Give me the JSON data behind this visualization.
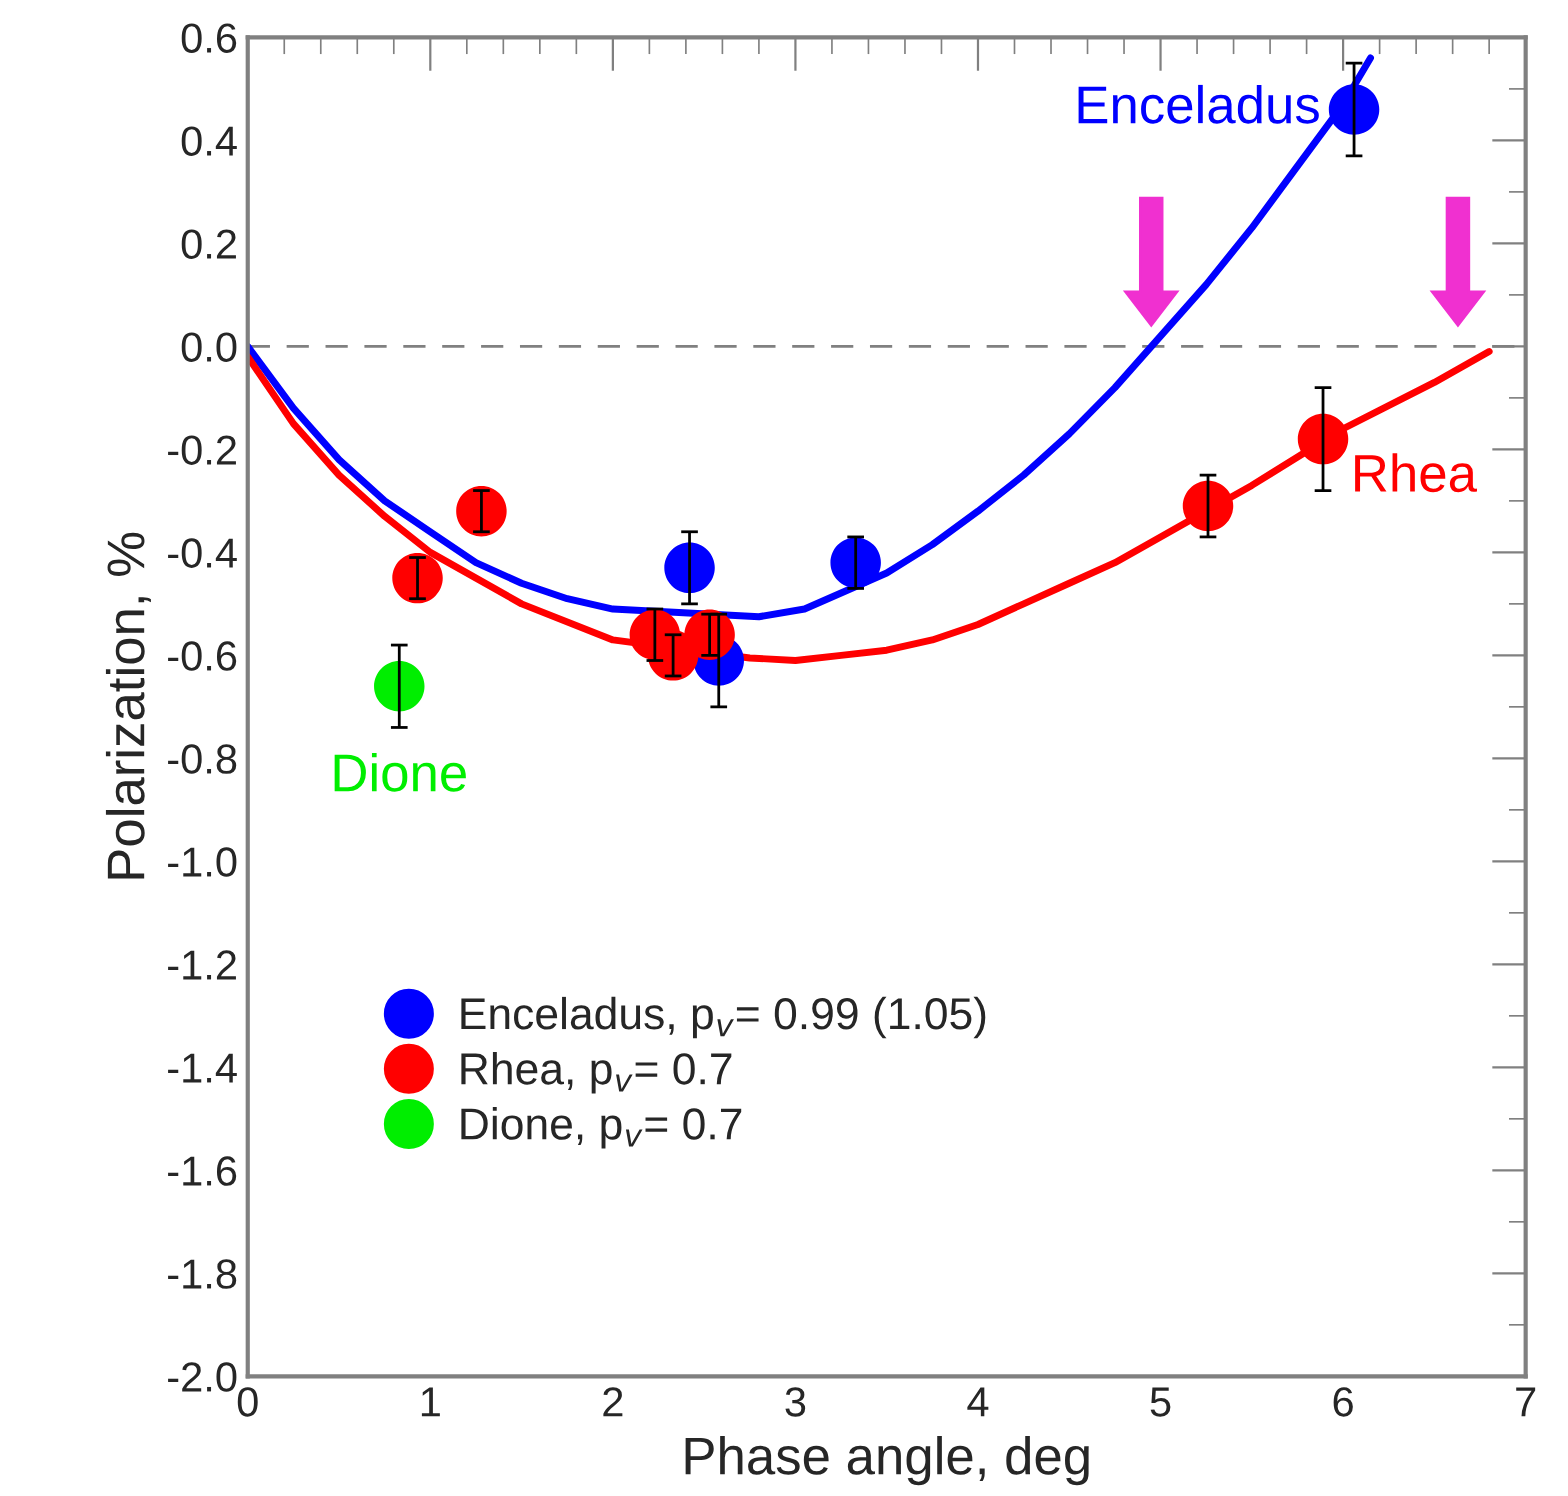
{
  "chart_data": {
    "type": "scatter",
    "xlabel": "Phase angle, deg",
    "ylabel": "Polarization, %",
    "xlim": [
      0,
      7
    ],
    "ylim": [
      -2.0,
      0.6
    ],
    "xticks": [
      0,
      1,
      2,
      3,
      4,
      5,
      6,
      7
    ],
    "yticks": [
      {
        "value": -2.0,
        "label": "-2.0"
      },
      {
        "value": -1.8,
        "label": "-1.8"
      },
      {
        "value": -1.6,
        "label": "-1.6"
      },
      {
        "value": -1.4,
        "label": "-1.4"
      },
      {
        "value": -1.2,
        "label": "-1.2"
      },
      {
        "value": -1.0,
        "label": "-1.0"
      },
      {
        "value": -0.8,
        "label": "-0.8"
      },
      {
        "value": -0.6,
        "label": "-0.6"
      },
      {
        "value": -0.4,
        "label": "-0.4"
      },
      {
        "value": -0.2,
        "label": "-0.2"
      },
      {
        "value": 0.0,
        "label": "0.0"
      },
      {
        "value": 0.2,
        "label": "0.2"
      },
      {
        "value": 0.4,
        "label": "0.4"
      },
      {
        "value": 0.6,
        "label": "0.6"
      }
    ],
    "grid": false,
    "legend": "bottom left",
    "marker": "circle",
    "ref_lines": [
      {
        "axis": "y",
        "value": 0,
        "color": "#808080",
        "line_style": "dashed"
      }
    ],
    "series": [
      {
        "type": "line",
        "marker": "none",
        "color": "#0000ff",
        "x": [
          0,
          0.25,
          0.5,
          0.75,
          1,
          1.25,
          1.5,
          1.75,
          2,
          2.8,
          3.05,
          3.5,
          3.75,
          4,
          4.25,
          4.5,
          4.75,
          5,
          5.25,
          5.5,
          5.75,
          6,
          6.15
        ],
        "values": [
          0,
          -0.12,
          -0.22,
          -0.3,
          -0.36,
          -0.42,
          -0.46,
          -0.49,
          -0.51,
          -0.525,
          -0.51,
          -0.44,
          -0.385,
          -0.32,
          -0.25,
          -0.17,
          -0.08,
          0.02,
          0.12,
          0.23,
          0.35,
          0.47,
          0.56
        ]
      },
      {
        "type": "line",
        "marker": "none",
        "color": "#ff0000",
        "x": [
          0,
          0.25,
          0.5,
          0.75,
          1,
          1.5,
          2,
          2.75,
          3,
          3.25,
          3.5,
          3.75,
          4,
          4.25,
          4.5,
          4.75,
          5,
          5.5,
          6,
          6.5,
          6.8
        ],
        "values": [
          -0.02,
          -0.15,
          -0.25,
          -0.33,
          -0.4,
          -0.5,
          -0.57,
          -0.605,
          -0.61,
          -0.6,
          -0.59,
          -0.57,
          -0.54,
          -0.5,
          -0.46,
          -0.42,
          -0.37,
          -0.27,
          -0.16,
          -0.07,
          -0.01
        ]
      },
      {
        "name": "Enceladus, p$_{v}$= 0.99 (1.05)",
        "color": "#0000ff",
        "x": [
          2.42,
          2.58,
          3.33,
          6.06
        ],
        "values": [
          -0.43,
          -0.61,
          -0.42,
          0.46
        ],
        "errors": [
          0.07,
          0.09,
          0.05,
          0.09
        ]
      },
      {
        "name": "Rhea, p$_{v}$= 0.7",
        "color": "#ff0000",
        "x": [
          0.93,
          1.28,
          2.23,
          2.33,
          2.53,
          5.26,
          5.89
        ],
        "values": [
          -0.45,
          -0.32,
          -0.56,
          -0.6,
          -0.56,
          -0.31,
          -0.18
        ],
        "errors": [
          0.04,
          0.04,
          0.05,
          0.04,
          0.04,
          0.06,
          0.1
        ]
      },
      {
        "name": "Dione, p$_{v}$= 0.7",
        "color": "#00ee00",
        "x": [
          0.83
        ],
        "values": [
          -0.66
        ],
        "errors": [
          0.08
        ]
      }
    ],
    "annotations": [
      "Enceladus",
      "Rhea",
      "Dione"
    ]
  }
}
